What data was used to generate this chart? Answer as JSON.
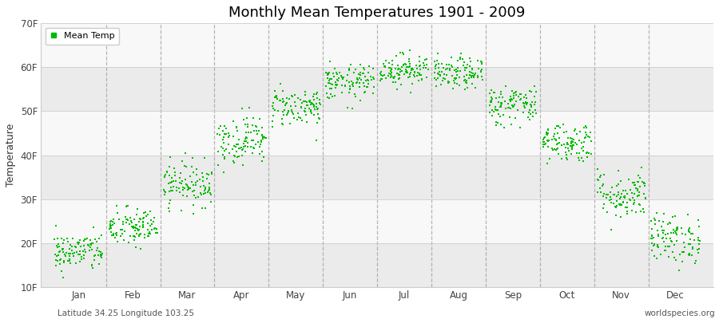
{
  "title": "Monthly Mean Temperatures 1901 - 2009",
  "ylabel": "Temperature",
  "xlabel_bottom_left": "Latitude 34.25 Longitude 103.25",
  "xlabel_bottom_right": "worldspecies.org",
  "legend_label": "Mean Temp",
  "dot_color": "#00bb00",
  "background_color": "#ffffff",
  "plot_bg_color": "#f5f5f5",
  "ylim": [
    10,
    70
  ],
  "yticks": [
    10,
    20,
    30,
    40,
    50,
    60,
    70
  ],
  "ytick_labels": [
    "10F",
    "20F",
    "30F",
    "40F",
    "50F",
    "60F",
    "70F"
  ],
  "months": [
    "Jan",
    "Feb",
    "Mar",
    "Apr",
    "May",
    "Jun",
    "Jul",
    "Aug",
    "Sep",
    "Oct",
    "Nov",
    "Dec"
  ],
  "month_means": [
    18.0,
    23.5,
    33.5,
    43.5,
    51.0,
    56.5,
    59.5,
    58.5,
    51.5,
    43.0,
    31.0,
    21.0
  ],
  "month_stds": [
    2.2,
    2.3,
    2.5,
    2.8,
    2.2,
    2.0,
    1.8,
    1.8,
    2.3,
    2.3,
    2.8,
    2.8
  ],
  "n_years": 109,
  "seed": 42,
  "dot_size": 4,
  "grid_color": "#cccccc",
  "vline_color": "#999999",
  "alternating_colors": [
    "#ebebeb",
    "#f8f8f8"
  ]
}
